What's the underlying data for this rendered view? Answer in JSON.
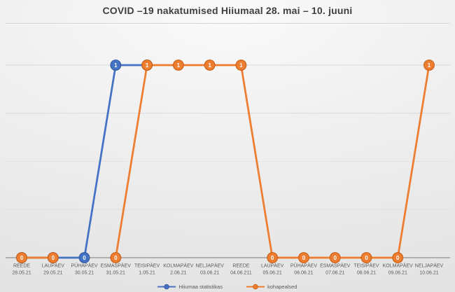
{
  "title": "COVID –19 nakatumised Hiiumaal 28. mai – 10. juuni",
  "colors": {
    "series_blue": "#4472C4",
    "series_blue_edge": "#2E5597",
    "series_orange": "#ED7D31",
    "series_orange_edge": "#C55A11",
    "axis_line": "#7a7a7a",
    "gridline": "#d6d6d6",
    "label_text": "#595959",
    "title_text": "#3f3f3f",
    "data_label_text": "#ffffff"
  },
  "chart_data": {
    "type": "line",
    "title": "COVID –19 nakatumised Hiiumaal 28. mai – 10. juuni",
    "xlabel": "",
    "ylabel": "",
    "ylim": [
      0,
      1.27
    ],
    "gridline_values": [
      0.25,
      0.5,
      0.75,
      1.0
    ],
    "grid": "horizontal-faint",
    "data_labels": true,
    "legend_position": "bottom",
    "categories": [
      {
        "day": "REEDE",
        "date": "28.05.21"
      },
      {
        "day": "LAUPÄEV",
        "date": "29.05.21"
      },
      {
        "day": "PÜHAPÄEV",
        "date": "30.05.21"
      },
      {
        "day": "ESMASPÄEV",
        "date": "31.05.21"
      },
      {
        "day": "TEISIPÄEV",
        "date": "1.05.21"
      },
      {
        "day": "KOLMAPÄEV",
        "date": "2.06.21"
      },
      {
        "day": "NELJAPÄEV",
        "date": "03.06.21"
      },
      {
        "day": "REEDE",
        "date": "04.06.211"
      },
      {
        "day": "LAUPÄEV",
        "date": "05.06.21"
      },
      {
        "day": "PÜHAPÄEV",
        "date": "06.06.21"
      },
      {
        "day": "ESMASPÄEV",
        "date": "07.06.21"
      },
      {
        "day": "TEISIPÄEV",
        "date": "08.06.21"
      },
      {
        "day": "KOLMAPÄEV",
        "date": "09.06.21"
      },
      {
        "day": "NELJAPÄEV",
        "date": "10.06.21"
      }
    ],
    "series": [
      {
        "name": "Hiiumaa statistikas",
        "color": "#4472C4",
        "edge": "#2E5597",
        "values": [
          0,
          0,
          0,
          1,
          1,
          null,
          null,
          null,
          null,
          null,
          null,
          null,
          null,
          null
        ]
      },
      {
        "name": "kohapealsed",
        "color": "#ED7D31",
        "edge": "#C55A11",
        "values": [
          0,
          0,
          null,
          0,
          1,
          1,
          1,
          1,
          0,
          0,
          0,
          0,
          0,
          1
        ]
      }
    ]
  }
}
